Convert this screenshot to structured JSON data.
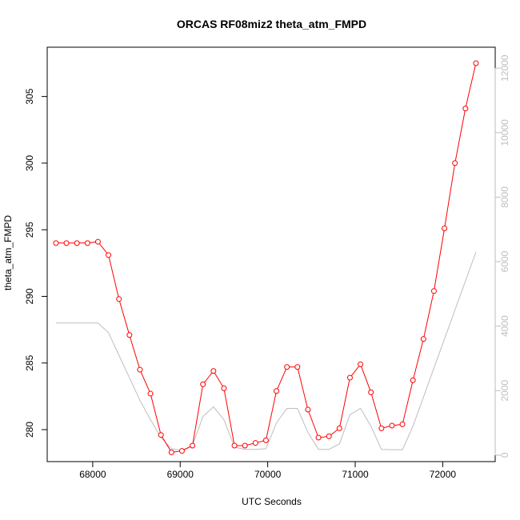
{
  "chart_data": {
    "type": "line",
    "title": "ORCAS RF08miz2 theta_atm_FMPD",
    "xlabel": "UTC Seconds",
    "ylabel": "theta_atm_FMPD",
    "xlim": [
      67480,
      72600
    ],
    "ylim": [
      277.6,
      308.7
    ],
    "ylim_right": [
      -200,
      12650
    ],
    "x_ticks": [
      68000,
      69000,
      70000,
      71000,
      72000
    ],
    "y_ticks": [
      280,
      285,
      290,
      295,
      300,
      305
    ],
    "y_ticks_right": [
      0,
      2000,
      4000,
      6000,
      8000,
      10000,
      12000
    ],
    "grid": false,
    "series": [
      {
        "axis": "left",
        "style": "line+points",
        "color": "#ff0000",
        "x": [
          67580,
          67700,
          67820,
          67940,
          68060,
          68180,
          68300,
          68420,
          68540,
          68660,
          68780,
          68900,
          69020,
          69140,
          69260,
          69380,
          69500,
          69620,
          69740,
          69860,
          69980,
          70100,
          70220,
          70340,
          70460,
          70580,
          70700,
          70820,
          70940,
          71060,
          71180,
          71300,
          71420,
          71540,
          71660,
          71780,
          71900,
          72020,
          72140,
          72260,
          72380
        ],
        "y": [
          294.0,
          294.0,
          294.0,
          294.0,
          294.1,
          293.1,
          289.8,
          287.1,
          284.5,
          282.7,
          279.6,
          278.3,
          278.4,
          278.8,
          283.4,
          284.4,
          283.1,
          278.8,
          278.8,
          279.0,
          279.2,
          282.9,
          284.7,
          284.7,
          281.5,
          279.4,
          279.5,
          280.1,
          283.9,
          284.9,
          282.8,
          280.1,
          280.3,
          280.4,
          283.7,
          286.8,
          290.4,
          295.1,
          300.0,
          304.1,
          307.5
        ]
      },
      {
        "axis": "right",
        "style": "line",
        "color": "#bebebe",
        "x": [
          67580,
          68060,
          68180,
          68300,
          68420,
          68540,
          68660,
          68780,
          68900,
          69020,
          69140,
          69260,
          69380,
          69500,
          69620,
          69740,
          69860,
          69980,
          70100,
          70220,
          70340,
          70460,
          70580,
          70700,
          70820,
          70940,
          71060,
          71180,
          71300,
          71420,
          71540,
          71660,
          71780,
          71900,
          72020,
          72140,
          72260,
          72380
        ],
        "y": [
          4100,
          4100,
          3800,
          3100,
          2400,
          1700,
          1100,
          550,
          200,
          150,
          300,
          1200,
          1500,
          1100,
          250,
          180,
          180,
          200,
          1000,
          1450,
          1450,
          700,
          180,
          180,
          350,
          1250,
          1450,
          900,
          180,
          170,
          170,
          900,
          1800,
          2700,
          3600,
          4500,
          5400,
          6300
        ]
      }
    ]
  }
}
